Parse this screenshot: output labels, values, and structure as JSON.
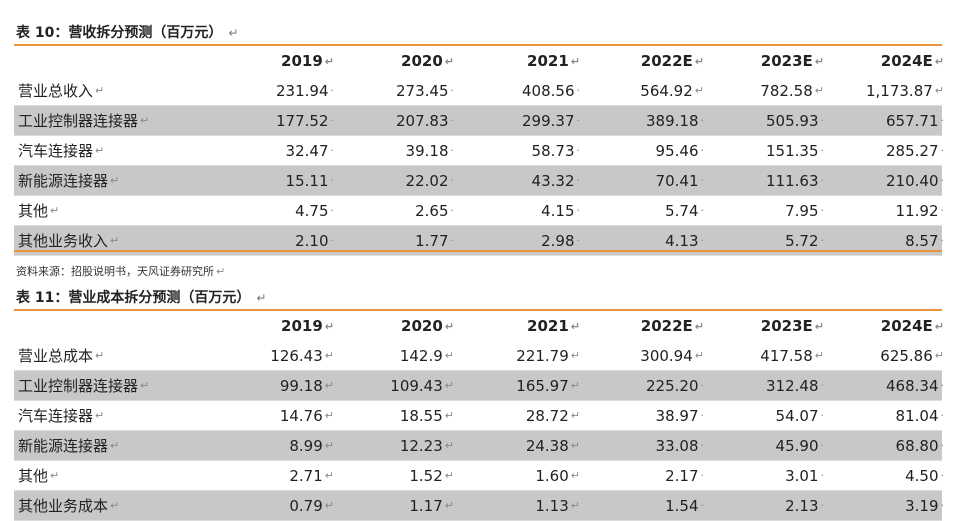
{
  "table1": {
    "caption": "表 10：营收拆分预测（百万元）",
    "caption_mark": "↵",
    "headers": [
      "2019",
      "2020",
      "2021",
      "2022E",
      "2023E",
      "2024E"
    ],
    "header_marks": [
      "↵",
      "↵",
      "↵",
      "↵",
      "↵",
      "↵"
    ],
    "rows": [
      {
        "label": "营业总收入",
        "values": [
          "231.94",
          "273.45",
          "408.56",
          "564.92",
          "782.58",
          "1,173.87"
        ],
        "marks": [
          "·",
          "·",
          "·",
          "↵",
          "↵",
          "↵"
        ]
      },
      {
        "label": "工业控制器连接器",
        "values": [
          "177.52",
          "207.83",
          "299.37",
          "389.18",
          "505.93",
          "657.71"
        ],
        "marks": [
          "·",
          "·",
          "·",
          "·",
          "·",
          "·"
        ]
      },
      {
        "label": "汽车连接器",
        "values": [
          "32.47",
          "39.18",
          "58.73",
          "95.46",
          "151.35",
          "285.27"
        ],
        "marks": [
          "·",
          "·",
          "·",
          "·",
          "·",
          "·"
        ]
      },
      {
        "label": "新能源连接器",
        "values": [
          "15.11",
          "22.02",
          "43.32",
          "70.41",
          "111.63",
          "210.40"
        ],
        "marks": [
          "·",
          "·",
          "·",
          "·",
          "·",
          "·"
        ]
      },
      {
        "label": "其他",
        "values": [
          "4.75",
          "2.65",
          "4.15",
          "5.74",
          "7.95",
          "11.92"
        ],
        "marks": [
          "·",
          "·",
          "·",
          "·",
          "·",
          "·"
        ]
      },
      {
        "label": "其他业务收入",
        "values": [
          "2.10",
          "1.77",
          "2.98",
          "4.13",
          "5.72",
          "8.57"
        ],
        "marks": [
          "·",
          "·",
          "·",
          "·",
          "·",
          "·"
        ]
      }
    ]
  },
  "source": "资料来源：招股说明书，天风证券研究所",
  "source_mark": "↵",
  "table2": {
    "caption": "表 11：营业成本拆分预测（百万元）",
    "caption_mark": "↵",
    "headers": [
      "2019",
      "2020",
      "2021",
      "2022E",
      "2023E",
      "2024E"
    ],
    "header_marks": [
      "↵",
      "↵",
      "↵",
      "↵",
      "↵",
      "↵"
    ],
    "rows": [
      {
        "label": "营业总成本",
        "values": [
          "126.43",
          "142.9",
          "221.79",
          "300.94",
          "417.58",
          "625.86"
        ],
        "marks": [
          "↵",
          "↵",
          "↵",
          "↵",
          "↵",
          "↵"
        ]
      },
      {
        "label": "工业控制器连接器",
        "values": [
          "99.18",
          "109.43",
          "165.97",
          "225.20",
          "312.48",
          "468.34"
        ],
        "marks": [
          "↵",
          "↵",
          "↵",
          "·",
          "·",
          "·"
        ]
      },
      {
        "label": "汽车连接器",
        "values": [
          "14.76",
          "18.55",
          "28.72",
          "38.97",
          "54.07",
          "81.04"
        ],
        "marks": [
          "↵",
          "↵",
          "↵",
          "·",
          "·",
          "·"
        ]
      },
      {
        "label": "新能源连接器",
        "values": [
          "8.99",
          "12.23",
          "24.38",
          "33.08",
          "45.90",
          "68.80"
        ],
        "marks": [
          "↵",
          "↵",
          "↵",
          "·",
          "·",
          "·"
        ]
      },
      {
        "label": "其他",
        "values": [
          "2.71",
          "1.52",
          "1.60",
          "2.17",
          "3.01",
          "4.50"
        ],
        "marks": [
          "↵",
          "↵",
          "↵",
          "·",
          "·",
          "·"
        ]
      },
      {
        "label": "其他业务成本",
        "values": [
          "0.79",
          "1.17",
          "1.13",
          "1.54",
          "2.13",
          "3.19"
        ],
        "marks": [
          "↵",
          "↵",
          "↵",
          "·",
          "·",
          "·"
        ]
      }
    ]
  }
}
